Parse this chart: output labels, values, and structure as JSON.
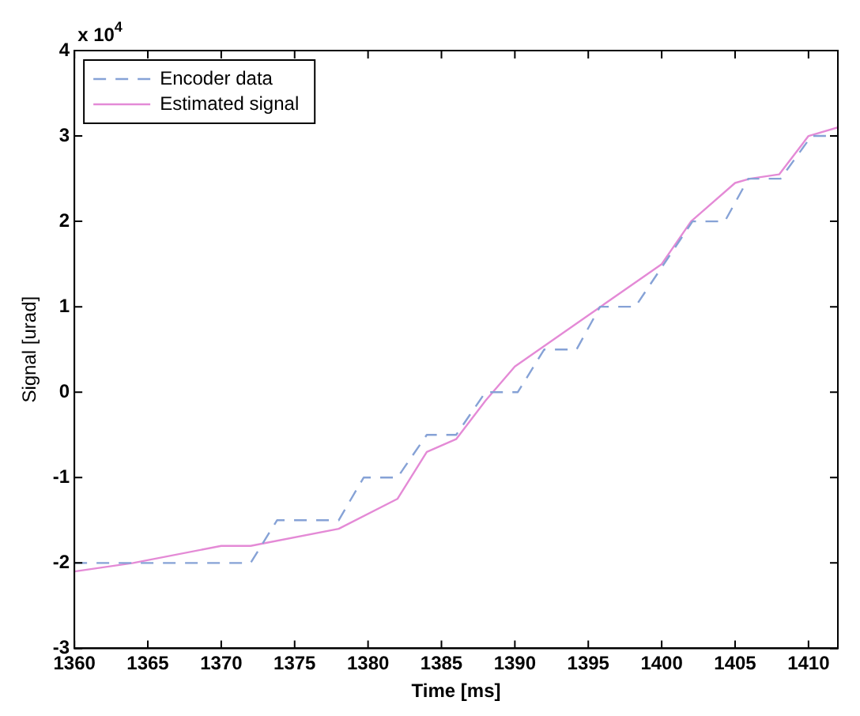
{
  "chart_data": {
    "type": "line",
    "xlabel": "Time [ms]",
    "ylabel": "Signal [urad]",
    "annotations": [
      "x 10$^{4}$"
    ],
    "series": [
      {
        "name": "Encoder data",
        "color": "#86a2d6",
        "line_style": "dashed",
        "x": [
          1360,
          1372,
          1373.8,
          1378,
          1379.7,
          1382,
          1384,
          1386,
          1388,
          1390.2,
          1392,
          1394.2,
          1395.8,
          1398.2,
          1402.1,
          1404.3,
          1405.9,
          1408.1,
          1410.2,
          1412
        ],
        "values": [
          -2,
          -2,
          -1.5,
          -1.5,
          -1,
          -1,
          -0.5,
          -0.5,
          0,
          0,
          0.5,
          0.5,
          1,
          1,
          2,
          2,
          2.5,
          2.5,
          3,
          3
        ]
      },
      {
        "name": "Estimated signal",
        "color": "#e48ad6",
        "line_style": "solid",
        "x": [
          1360,
          1364,
          1370,
          1372,
          1378,
          1382,
          1384,
          1386,
          1388,
          1390,
          1395,
          1400,
          1402,
          1405,
          1406,
          1408,
          1410,
          1412
        ],
        "values": [
          -2.1,
          -2,
          -1.8,
          -1.8,
          -1.6,
          -1.25,
          -0.7,
          -0.55,
          -0.1,
          0.3,
          0.9,
          1.5,
          2,
          2.45,
          2.5,
          2.55,
          3,
          3.1
        ]
      }
    ],
    "xlim": [
      1360,
      1412
    ],
    "xticks": [
      1360,
      1365,
      1370,
      1375,
      1380,
      1385,
      1390,
      1395,
      1400,
      1405,
      1410
    ],
    "ylim": [
      -3,
      4
    ],
    "yticks": [
      -3,
      -2,
      -1,
      0,
      1,
      2,
      3,
      4
    ],
    "grid": false,
    "legend": "top left",
    "marker": "none"
  }
}
